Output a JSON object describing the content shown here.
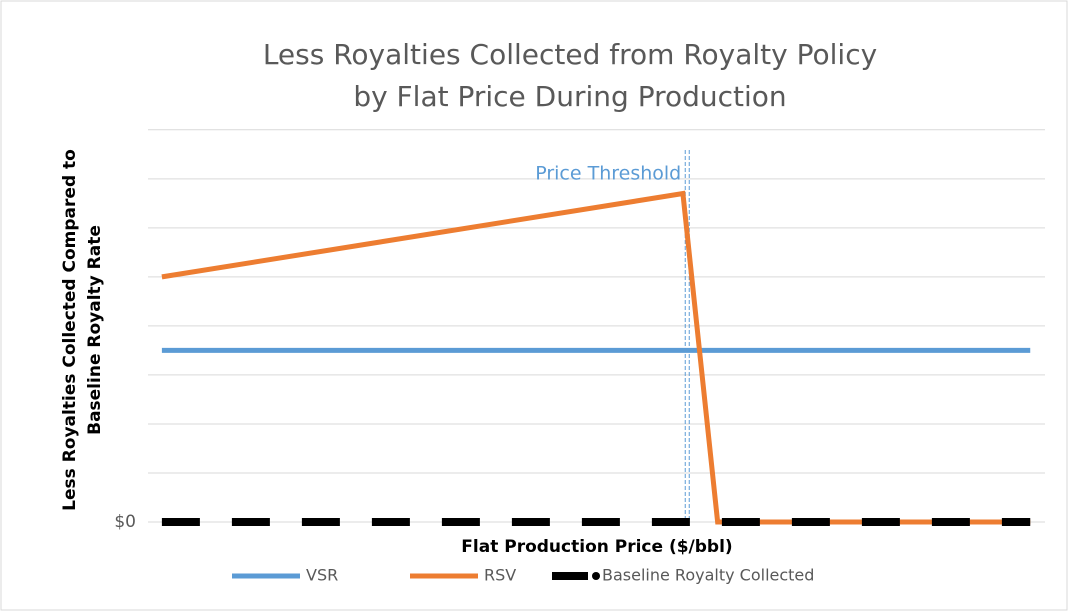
{
  "chart_data": {
    "type": "line",
    "title": [
      "Less Royalties Collected from Royalty Policy",
      "by Flat Price During Production"
    ],
    "xlabel": "Flat Production Price ($/bbl)",
    "ylabel": [
      "Less Royalties Collected Compared to",
      "Baseline Royalty Rate"
    ],
    "annotation": {
      "text": "Price Threshold",
      "x": 60.5,
      "color": "#5b9bd5"
    },
    "xlim": [
      -1.6,
      101.7
    ],
    "ylim": [
      0,
      8.2
    ],
    "yticks": [
      {
        "value": 0,
        "label": "$0"
      }
    ],
    "ygrid": [
      0,
      1,
      2,
      3,
      4,
      5,
      6,
      7,
      8
    ],
    "legend": "bottom",
    "series": [
      {
        "name": "VSR",
        "color": "#5b9bd5",
        "dash": false,
        "x": [
          0,
          100
        ],
        "values": [
          3.5,
          3.5
        ]
      },
      {
        "name": "RSV",
        "color": "#ed7d31",
        "dash": false,
        "x": [
          0,
          60,
          64,
          100
        ],
        "values": [
          5,
          6.7,
          0,
          0
        ]
      },
      {
        "name": "Baseline Royalty Collected",
        "color": "#000000",
        "dash": true,
        "x": [
          0,
          100
        ],
        "values": [
          0,
          0
        ]
      }
    ]
  }
}
